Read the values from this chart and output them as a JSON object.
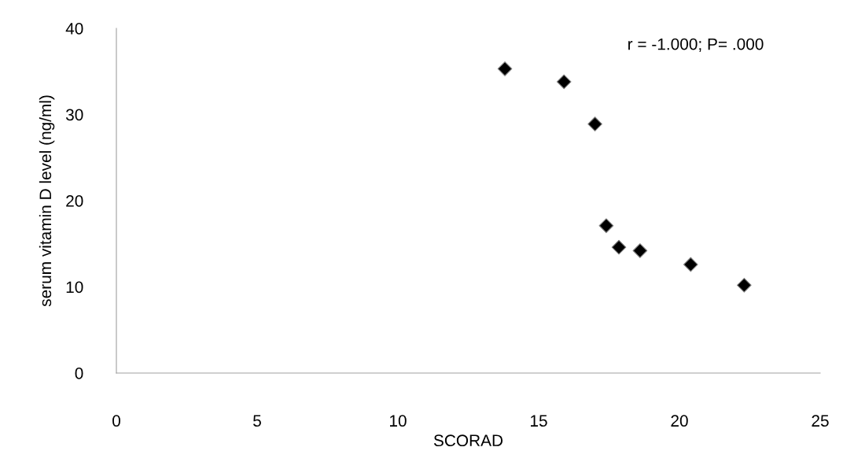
{
  "chart_data": {
    "type": "scatter",
    "xlabel": "SCORAD",
    "ylabel": "serum vitamin D level (ng/ml)",
    "annotations": [
      "r = -1.000; P= .000"
    ],
    "x": [
      13.8,
      15.9,
      17.0,
      17.4,
      17.85,
      18.6,
      20.4,
      22.3
    ],
    "values": [
      35.3,
      33.8,
      28.9,
      17.1,
      14.6,
      14.2,
      12.6,
      10.2
    ],
    "color": "#000000",
    "marker": "diamond",
    "xlim": [
      0,
      25
    ],
    "xticks": [
      0,
      5,
      10,
      15,
      20,
      25
    ],
    "ylim": [
      0,
      40
    ],
    "yticks": [
      0,
      10,
      20,
      30,
      40
    ],
    "grid": false
  }
}
